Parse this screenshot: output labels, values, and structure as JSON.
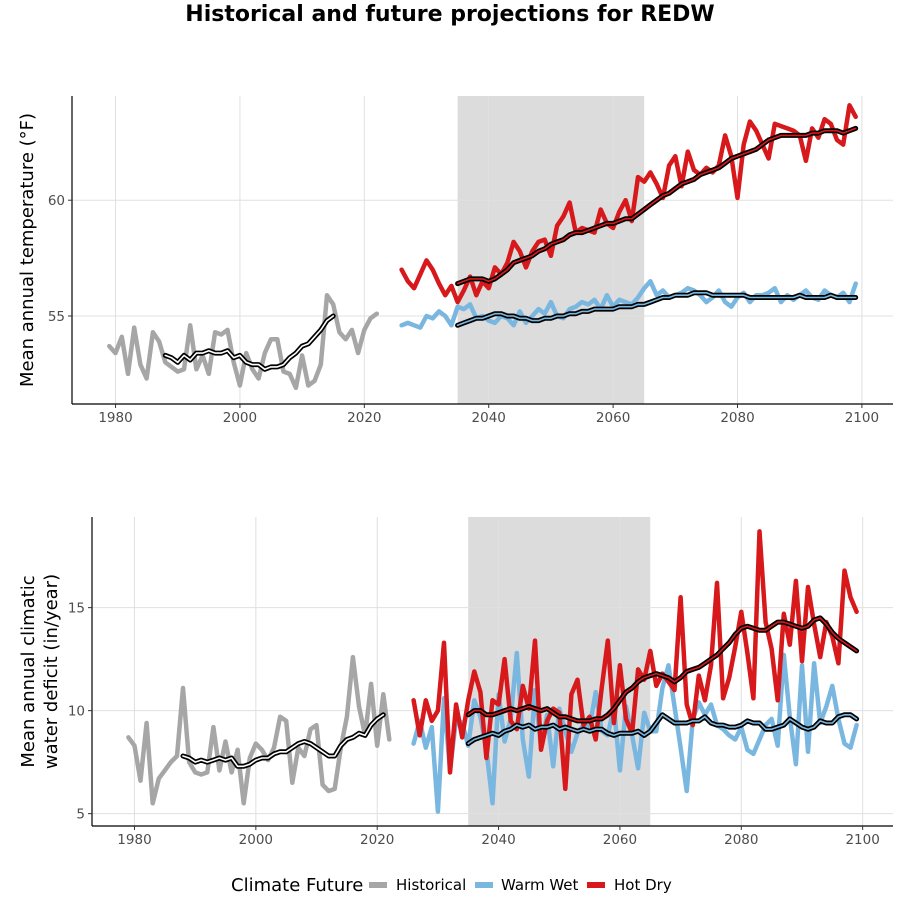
{
  "title": "Historical and future projections for REDW",
  "colors": {
    "historical": "#a6a6a6",
    "warm_wet": "#7ab7e0",
    "hot_dry": "#d7191c",
    "smooth": "#000000",
    "band": "#dcdcdc"
  },
  "legend": {
    "title": "Climate Future",
    "items": [
      {
        "label": "Historical",
        "color": "#a6a6a6"
      },
      {
        "label": "Warm Wet",
        "color": "#7ab7e0"
      },
      {
        "label": "Hot Dry",
        "color": "#d7191c"
      }
    ]
  },
  "chart_data": [
    {
      "type": "line",
      "ylabel": "Mean annual temperature (°F)",
      "xlim": [
        1973,
        2105
      ],
      "ylim": [
        51.2,
        64.5
      ],
      "xticks": [
        1980,
        2000,
        2020,
        2040,
        2060,
        2080,
        2100
      ],
      "yticks": [
        55,
        60
      ],
      "shaded_band": [
        2035,
        2065
      ],
      "grid": true,
      "series": [
        {
          "name": "Historical",
          "color_key": "historical",
          "x_start": 1979,
          "values": [
            53.7,
            53.4,
            54.1,
            52.5,
            54.5,
            52.9,
            52.3,
            54.3,
            53.9,
            53.0,
            52.8,
            52.6,
            52.7,
            54.6,
            52.7,
            53.3,
            52.5,
            54.3,
            54.2,
            54.4,
            53.0,
            52.0,
            53.4,
            52.7,
            52.3,
            53.4,
            54.0,
            54.0,
            52.6,
            52.5,
            51.9,
            53.3,
            52.0,
            52.2,
            52.9,
            55.9,
            55.5,
            54.3,
            54.0,
            54.4,
            53.4,
            54.4,
            54.9,
            55.1
          ]
        },
        {
          "name": "Historical smooth",
          "color_key": "smooth",
          "x_start": 1988,
          "values": [
            53.3,
            53.2,
            53.0,
            53.3,
            53.1,
            53.4,
            53.4,
            53.5,
            53.4,
            53.4,
            53.5,
            53.2,
            53.3,
            53.0,
            52.9,
            52.9,
            52.7,
            52.8,
            52.8,
            52.9,
            53.2,
            53.4,
            53.7,
            53.8,
            54.1,
            54.4,
            54.8,
            55.0
          ]
        },
        {
          "name": "Warm Wet",
          "color_key": "warm_wet",
          "x_start": 2026,
          "values": [
            54.6,
            54.7,
            54.6,
            54.5,
            55.0,
            54.9,
            55.2,
            55.0,
            54.6,
            55.4,
            55.3,
            55.5,
            54.9,
            55.0,
            54.8,
            54.7,
            55.0,
            54.9,
            54.6,
            55.2,
            54.7,
            55.0,
            55.3,
            55.1,
            55.6,
            55.0,
            54.9,
            55.3,
            55.4,
            55.6,
            55.5,
            55.7,
            55.3,
            55.9,
            55.4,
            55.7,
            55.6,
            55.5,
            55.8,
            56.2,
            56.5,
            55.9,
            56.1,
            55.8,
            55.9,
            56.0,
            56.2,
            56.1,
            55.9,
            55.6,
            55.8,
            56.1,
            55.6,
            55.4,
            55.8,
            56.0,
            55.6,
            55.9,
            55.9,
            56.0,
            56.2,
            55.6,
            55.9,
            55.7,
            55.9,
            56.1,
            55.8,
            55.7,
            56.1,
            55.9,
            55.8,
            56.0,
            55.6,
            56.4
          ]
        },
        {
          "name": "Warm Wet smooth",
          "color_key": "smooth",
          "x_start": 2035,
          "values": [
            54.6,
            54.7,
            54.8,
            54.9,
            54.9,
            55.0,
            55.1,
            55.1,
            55.0,
            55.0,
            54.9,
            54.9,
            54.8,
            54.8,
            54.9,
            54.9,
            55.0,
            55.0,
            55.1,
            55.1,
            55.2,
            55.2,
            55.3,
            55.3,
            55.3,
            55.3,
            55.4,
            55.4,
            55.4,
            55.5,
            55.5,
            55.6,
            55.7,
            55.8,
            55.8,
            55.9,
            55.9,
            55.9,
            56.0,
            56.0,
            56.0,
            55.9,
            55.9,
            55.9,
            55.9,
            55.9,
            55.9,
            55.8,
            55.8,
            55.8,
            55.8,
            55.8,
            55.8,
            55.8,
            55.8,
            55.9,
            55.8,
            55.8,
            55.8,
            55.8,
            55.9,
            55.8,
            55.8,
            55.8,
            55.8
          ]
        },
        {
          "name": "Hot Dry",
          "color_key": "hot_dry",
          "x_start": 2026,
          "values": [
            57.0,
            56.5,
            56.2,
            56.8,
            57.4,
            57.0,
            56.4,
            55.9,
            56.3,
            55.6,
            56.1,
            56.7,
            55.9,
            56.5,
            56.2,
            57.1,
            56.8,
            57.3,
            58.2,
            57.8,
            57.1,
            57.8,
            58.2,
            58.3,
            57.6,
            58.9,
            59.3,
            59.9,
            58.6,
            58.8,
            58.7,
            58.6,
            59.6,
            59.0,
            58.8,
            59.5,
            60.0,
            59.1,
            61.0,
            60.8,
            61.2,
            60.7,
            60.1,
            61.5,
            61.9,
            60.6,
            62.1,
            61.3,
            61.1,
            61.4,
            61.2,
            61.5,
            62.8,
            61.9,
            60.1,
            62.4,
            63.4,
            63.0,
            62.4,
            61.8,
            63.3,
            63.2,
            63.1,
            63.0,
            62.8,
            61.7,
            63.1,
            62.7,
            63.5,
            63.3,
            62.6,
            62.4,
            64.1,
            63.6
          ]
        },
        {
          "name": "Hot Dry smooth",
          "color_key": "smooth",
          "x_start": 2035,
          "values": [
            56.4,
            56.5,
            56.6,
            56.6,
            56.6,
            56.5,
            56.6,
            56.8,
            57.0,
            57.3,
            57.4,
            57.5,
            57.6,
            57.8,
            57.9,
            58.1,
            58.2,
            58.3,
            58.5,
            58.6,
            58.6,
            58.7,
            58.8,
            58.9,
            59.0,
            59.0,
            59.1,
            59.2,
            59.2,
            59.4,
            59.6,
            59.8,
            60.0,
            60.2,
            60.3,
            60.5,
            60.7,
            60.8,
            60.9,
            61.1,
            61.2,
            61.3,
            61.4,
            61.6,
            61.8,
            61.9,
            62.0,
            62.1,
            62.2,
            62.4,
            62.6,
            62.7,
            62.8,
            62.8,
            62.8,
            62.8,
            62.8,
            62.9,
            62.9,
            63.0,
            63.0,
            63.0,
            62.9,
            63.0,
            63.1
          ]
        }
      ]
    },
    {
      "type": "line",
      "ylabel": "Mean annual climatic water deficit (in/year)",
      "xlim": [
        1973,
        2105
      ],
      "ylim": [
        4.4,
        19.4
      ],
      "xticks": [
        1980,
        2000,
        2020,
        2040,
        2060,
        2080,
        2100
      ],
      "yticks": [
        5,
        10,
        15
      ],
      "shaded_band": [
        2035,
        2065
      ],
      "grid": true,
      "series": [
        {
          "name": "Historical",
          "color_key": "historical",
          "x_start": 1979,
          "values": [
            8.7,
            8.3,
            6.6,
            9.4,
            5.5,
            6.7,
            7.1,
            7.5,
            7.8,
            11.1,
            7.5,
            7.0,
            6.9,
            7.0,
            9.2,
            7.1,
            8.5,
            7.0,
            8.1,
            5.5,
            7.7,
            8.4,
            8.1,
            7.6,
            8.2,
            9.7,
            9.5,
            6.5,
            8.2,
            7.8,
            9.1,
            9.3,
            6.4,
            6.1,
            6.2,
            8.2,
            9.7,
            12.6,
            10.2,
            8.8,
            11.3,
            8.3,
            10.8,
            8.6
          ]
        },
        {
          "name": "Historical smooth",
          "color_key": "smooth",
          "x_start": 1988,
          "values": [
            7.8,
            7.7,
            7.5,
            7.6,
            7.5,
            7.6,
            7.7,
            7.6,
            7.7,
            7.3,
            7.3,
            7.4,
            7.6,
            7.7,
            7.7,
            7.9,
            8.0,
            8.0,
            8.2,
            8.4,
            8.5,
            8.4,
            8.2,
            8.0,
            7.8,
            7.8,
            8.3,
            8.6,
            8.7,
            8.9,
            8.8,
            9.3,
            9.6,
            9.8
          ]
        },
        {
          "name": "Warm Wet",
          "color_key": "warm_wet",
          "x_start": 2026,
          "values": [
            8.4,
            9.5,
            8.2,
            9.2,
            5.1,
            10.6,
            7.1,
            9.6,
            9.4,
            8.3,
            10.5,
            9.7,
            8.1,
            5.5,
            10.8,
            8.5,
            9.6,
            12.8,
            8.6,
            6.8,
            11.0,
            8.2,
            9.8,
            7.3,
            10.1,
            9.0,
            8.0,
            8.9,
            9.3,
            9.2,
            10.9,
            9.0,
            8.8,
            10.2,
            7.1,
            10.2,
            8.8,
            7.2,
            9.9,
            9.0,
            9.0,
            11.1,
            12.2,
            10.2,
            8.2,
            6.1,
            9.6,
            10.4,
            9.8,
            10.3,
            9.3,
            9.1,
            8.8,
            8.6,
            9.2,
            8.1,
            7.9,
            8.6,
            9.3,
            9.6,
            8.3,
            12.7,
            9.7,
            7.4,
            12.2,
            8.0,
            12.3,
            9.4,
            10.2,
            11.2,
            9.6,
            8.4,
            8.2,
            9.3
          ]
        },
        {
          "name": "Warm Wet smooth",
          "color_key": "smooth",
          "x_start": 2035,
          "values": [
            8.4,
            8.6,
            8.7,
            8.8,
            8.9,
            8.8,
            9.0,
            9.1,
            9.3,
            9.2,
            9.3,
            9.1,
            9.2,
            9.2,
            9.3,
            9.1,
            9.2,
            9.1,
            9.0,
            9.1,
            9.0,
            9.1,
            9.1,
            8.9,
            8.8,
            8.9,
            8.9,
            8.9,
            9.0,
            8.8,
            9.0,
            9.4,
            9.8,
            9.6,
            9.4,
            9.4,
            9.4,
            9.5,
            9.5,
            9.7,
            9.4,
            9.3,
            9.3,
            9.2,
            9.2,
            9.3,
            9.5,
            9.4,
            9.4,
            9.1,
            9.1,
            9.2,
            9.3,
            9.6,
            9.4,
            9.2,
            9.1,
            9.2,
            9.5,
            9.4,
            9.4,
            9.7,
            9.8,
            9.8,
            9.6
          ]
        },
        {
          "name": "Hot Dry",
          "color_key": "hot_dry",
          "x_start": 2026,
          "values": [
            10.5,
            8.8,
            10.5,
            9.5,
            10.0,
            13.3,
            7.0,
            10.3,
            8.7,
            10.5,
            11.9,
            10.9,
            7.7,
            10.5,
            10.3,
            12.5,
            9.5,
            9.1,
            11.2,
            10.1,
            13.4,
            8.1,
            9.5,
            10.1,
            9.9,
            6.2,
            10.8,
            11.5,
            9.3,
            9.7,
            8.6,
            11.1,
            13.4,
            9.4,
            12.2,
            9.6,
            8.9,
            12.0,
            11.5,
            12.9,
            11.2,
            11.8,
            11.4,
            11.0,
            15.5,
            10.3,
            9.3,
            11.7,
            10.5,
            12.2,
            16.2,
            10.6,
            11.6,
            13.1,
            14.8,
            12.8,
            10.6,
            18.7,
            14.3,
            13.0,
            10.5,
            14.7,
            13.2,
            16.3,
            12.4,
            16.0,
            14.2,
            12.6,
            14.3,
            13.6,
            12.3,
            16.8,
            15.5,
            14.8
          ]
        },
        {
          "name": "Hot Dry smooth",
          "color_key": "smooth",
          "x_start": 2035,
          "values": [
            9.8,
            10.0,
            10.0,
            9.8,
            9.8,
            9.9,
            10.0,
            10.1,
            10.0,
            10.1,
            10.2,
            10.1,
            10.0,
            10.1,
            9.9,
            9.7,
            9.7,
            9.6,
            9.5,
            9.5,
            9.5,
            9.6,
            9.6,
            9.8,
            10.1,
            10.5,
            10.9,
            11.1,
            11.4,
            11.6,
            11.7,
            11.8,
            11.7,
            11.6,
            11.4,
            11.6,
            11.9,
            12.0,
            12.1,
            12.3,
            12.5,
            12.7,
            13.0,
            13.3,
            13.7,
            14.0,
            14.1,
            14.0,
            13.9,
            13.9,
            14.1,
            14.3,
            14.3,
            14.2,
            14.1,
            14.0,
            14.1,
            14.4,
            14.5,
            14.2,
            13.8,
            13.5,
            13.3,
            13.1,
            12.9
          ]
        }
      ]
    }
  ]
}
